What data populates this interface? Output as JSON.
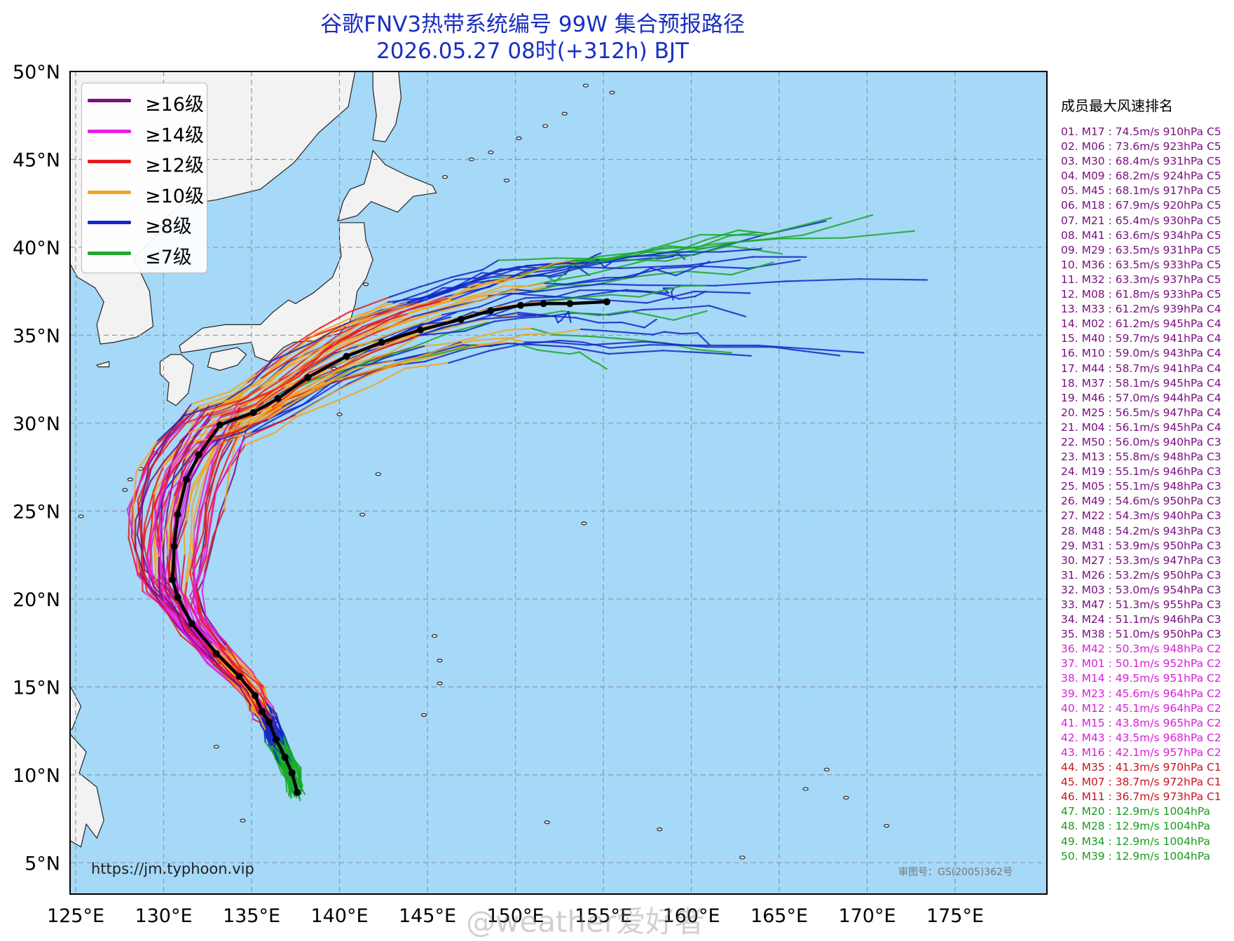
{
  "header": {
    "title_line1": "谷歌FNV3热带系统编号 99W 集合预报路径",
    "title_line2": "2026.05.27 08时(+312h) BJT"
  },
  "map": {
    "lon_ticks": [
      "125°E",
      "130°E",
      "135°E",
      "140°E",
      "145°E",
      "150°E",
      "155°E",
      "160°E",
      "165°E",
      "170°E",
      "175°E"
    ],
    "lat_ticks": [
      "50°N",
      "45°N",
      "40°N",
      "35°N",
      "30°N",
      "25°N",
      "20°N",
      "15°N",
      "10°N",
      "5°N"
    ],
    "colors": {
      "ocean": "#a6d8f7",
      "land": "#f2f2f2",
      "grid": "#8a9aa8",
      "mean_track": "#000000"
    },
    "mean_track": [
      [
        137.6,
        9.0
      ],
      [
        137.3,
        10.1
      ],
      [
        136.9,
        11.0
      ],
      [
        136.4,
        12.0
      ],
      [
        136.0,
        13.0
      ],
      [
        135.6,
        13.6
      ],
      [
        135.2,
        14.5
      ],
      [
        134.3,
        15.6
      ],
      [
        133.0,
        16.9
      ],
      [
        131.6,
        18.6
      ],
      [
        130.8,
        20.1
      ],
      [
        130.5,
        21.1
      ],
      [
        130.6,
        23.0
      ],
      [
        130.8,
        24.8
      ],
      [
        131.3,
        26.8
      ],
      [
        132.0,
        28.2
      ],
      [
        133.2,
        29.9
      ],
      [
        135.1,
        30.6
      ],
      [
        136.5,
        31.4
      ],
      [
        138.2,
        32.6
      ],
      [
        140.4,
        33.8
      ],
      [
        142.4,
        34.6
      ],
      [
        144.6,
        35.3
      ],
      [
        146.9,
        35.9
      ],
      [
        148.6,
        36.4
      ],
      [
        150.3,
        36.7
      ],
      [
        151.6,
        36.8
      ],
      [
        153.1,
        36.8
      ],
      [
        155.2,
        36.9
      ]
    ]
  },
  "legend": {
    "items": [
      {
        "label": "≥16级",
        "color": "#7a0f82"
      },
      {
        "label": "≥14级",
        "color": "#e51ee0"
      },
      {
        "label": "≥12级",
        "color": "#e61b20"
      },
      {
        "label": "≥10级",
        "color": "#f4a51c"
      },
      {
        "label": "≥8级",
        "color": "#1428c8"
      },
      {
        "label": "≤7级",
        "color": "#1aaa2a"
      }
    ]
  },
  "ranking": {
    "title": "成员最大风速排名",
    "items": [
      {
        "text": "01. M17 : 74.5m/s 910hPa C5",
        "color": "#7a1080"
      },
      {
        "text": "02. M06 : 73.6m/s 923hPa C5",
        "color": "#7a1080"
      },
      {
        "text": "03. M30 : 68.4m/s 931hPa C5",
        "color": "#7a1080"
      },
      {
        "text": "04. M09 : 68.2m/s 924hPa C5",
        "color": "#7a1080"
      },
      {
        "text": "05. M45 : 68.1m/s 917hPa C5",
        "color": "#7a1080"
      },
      {
        "text": "06. M18 : 67.9m/s 920hPa C5",
        "color": "#7a1080"
      },
      {
        "text": "07. M21 : 65.4m/s 930hPa C5",
        "color": "#7a1080"
      },
      {
        "text": "08. M41 : 63.6m/s 934hPa C5",
        "color": "#7a1080"
      },
      {
        "text": "09. M29 : 63.5m/s 931hPa C5",
        "color": "#7a1080"
      },
      {
        "text": "10. M36 : 63.5m/s 933hPa C5",
        "color": "#7a1080"
      },
      {
        "text": "11. M32 : 63.3m/s 937hPa C5",
        "color": "#7a1080"
      },
      {
        "text": "12. M08 : 61.8m/s 933hPa C5",
        "color": "#7a1080"
      },
      {
        "text": "13. M33 : 61.2m/s 939hPa C4",
        "color": "#7a1080"
      },
      {
        "text": "14. M02 : 61.2m/s 945hPa C4",
        "color": "#7a1080"
      },
      {
        "text": "15. M40 : 59.7m/s 941hPa C4",
        "color": "#7a1080"
      },
      {
        "text": "16. M10 : 59.0m/s 943hPa C4",
        "color": "#7a1080"
      },
      {
        "text": "17. M44 : 58.7m/s 941hPa C4",
        "color": "#7a1080"
      },
      {
        "text": "18. M37 : 58.1m/s 945hPa C4",
        "color": "#7a1080"
      },
      {
        "text": "19. M46 : 57.0m/s 944hPa C4",
        "color": "#7a1080"
      },
      {
        "text": "20. M25 : 56.5m/s 947hPa C4",
        "color": "#7a1080"
      },
      {
        "text": "21. M04 : 56.1m/s 945hPa C4",
        "color": "#7a1080"
      },
      {
        "text": "22. M50 : 56.0m/s 940hPa C3",
        "color": "#7a1080"
      },
      {
        "text": "23. M13 : 55.8m/s 948hPa C3",
        "color": "#7a1080"
      },
      {
        "text": "24. M19 : 55.1m/s 946hPa C3",
        "color": "#7a1080"
      },
      {
        "text": "25. M05 : 55.1m/s 948hPa C3",
        "color": "#7a1080"
      },
      {
        "text": "26. M49 : 54.6m/s 950hPa C3",
        "color": "#7a1080"
      },
      {
        "text": "27. M22 : 54.3m/s 940hPa C3",
        "color": "#7a1080"
      },
      {
        "text": "28. M48 : 54.2m/s 943hPa C3",
        "color": "#7a1080"
      },
      {
        "text": "29. M31 : 53.9m/s 950hPa C3",
        "color": "#7a1080"
      },
      {
        "text": "30. M27 : 53.3m/s 947hPa C3",
        "color": "#7a1080"
      },
      {
        "text": "31. M26 : 53.2m/s 950hPa C3",
        "color": "#7a1080"
      },
      {
        "text": "32. M03 : 53.0m/s 954hPa C3",
        "color": "#7a1080"
      },
      {
        "text": "33. M47 : 51.3m/s 955hPa C3",
        "color": "#7a1080"
      },
      {
        "text": "34. M24 : 51.1m/s 946hPa C3",
        "color": "#7a1080"
      },
      {
        "text": "35. M38 : 51.0m/s 950hPa C3",
        "color": "#7a1080"
      },
      {
        "text": "36. M42 : 50.3m/s 948hPa C2",
        "color": "#d81ed8"
      },
      {
        "text": "37. M01 : 50.1m/s 952hPa C2",
        "color": "#d81ed8"
      },
      {
        "text": "38. M14 : 49.5m/s 951hPa C2",
        "color": "#d81ed8"
      },
      {
        "text": "39. M23 : 45.6m/s 964hPa C2",
        "color": "#d81ed8"
      },
      {
        "text": "40. M12 : 45.1m/s 964hPa C2",
        "color": "#d81ed8"
      },
      {
        "text": "41. M15 : 43.8m/s 965hPa C2",
        "color": "#d81ed8"
      },
      {
        "text": "42. M43 : 43.5m/s 968hPa C2",
        "color": "#d81ed8"
      },
      {
        "text": "43. M16 : 42.1m/s 957hPa C2",
        "color": "#d81ed8"
      },
      {
        "text": "44. M35 : 41.3m/s 970hPa C1",
        "color": "#c8141c"
      },
      {
        "text": "45. M07 : 38.7m/s 972hPa C1",
        "color": "#c8141c"
      },
      {
        "text": "46. M11 : 36.7m/s 973hPa C1",
        "color": "#c8141c"
      },
      {
        "text": "47. M20 : 12.9m/s 1004hPa",
        "color": "#1a9a20"
      },
      {
        "text": "48. M28 : 12.9m/s 1004hPa",
        "color": "#1a9a20"
      },
      {
        "text": "49. M34 : 12.9m/s 1004hPa",
        "color": "#1a9a20"
      },
      {
        "text": "50. M39 : 12.9m/s 1004hPa",
        "color": "#1a9a20"
      }
    ]
  },
  "footer": {
    "url": "https://jm.typhoon.vip",
    "approval": "审图号：GS(2005)362号",
    "watermark": "@weather爱好者"
  }
}
